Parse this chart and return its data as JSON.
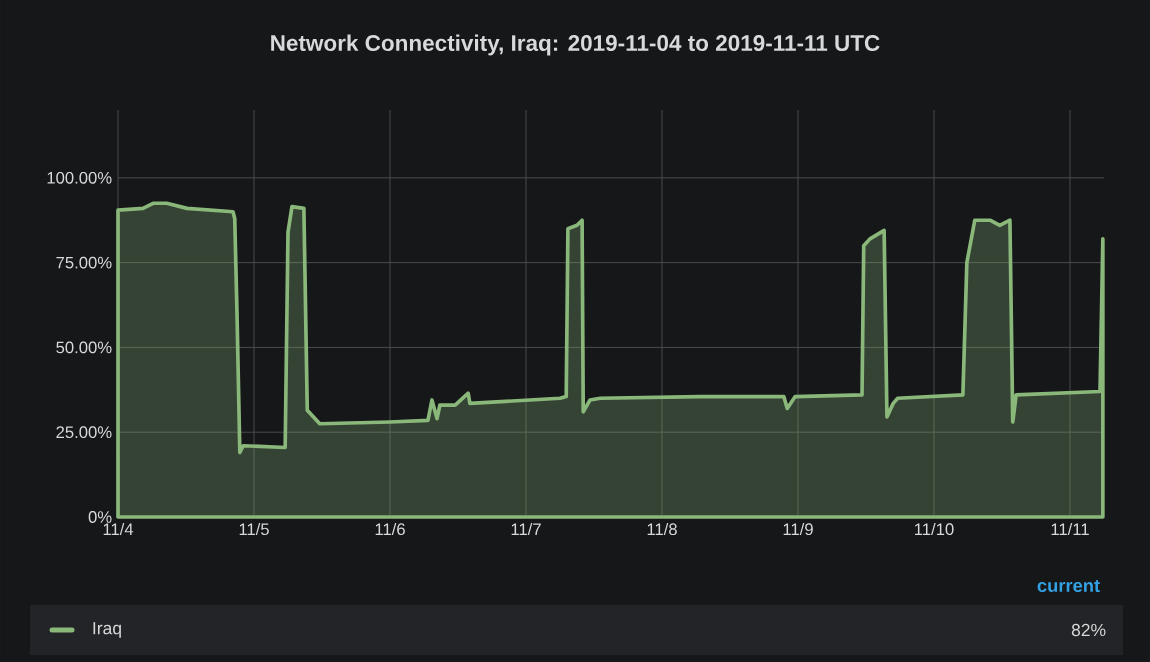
{
  "chart_data": {
    "type": "area",
    "title": "Network Connectivity, Iraq: 2019-11-04 to 2019-11-11 UTC",
    "xlim": [
      "2019-11-04T00:00",
      "2019-11-11T06:00"
    ],
    "xticks": [
      {
        "value": "2019-11-04",
        "label": "11/4"
      },
      {
        "value": "2019-11-05",
        "label": "11/5"
      },
      {
        "value": "2019-11-06",
        "label": "11/6"
      },
      {
        "value": "2019-11-07",
        "label": "11/7"
      },
      {
        "value": "2019-11-08",
        "label": "11/8"
      },
      {
        "value": "2019-11-09",
        "label": "11/9"
      },
      {
        "value": "2019-11-10",
        "label": "11/10"
      },
      {
        "value": "2019-11-11",
        "label": "11/11"
      }
    ],
    "ylim": [
      0,
      120
    ],
    "yticks": [
      {
        "value": 0,
        "label": "0%"
      },
      {
        "value": 25,
        "label": "25.00%"
      },
      {
        "value": 50,
        "label": "50.00%"
      },
      {
        "value": 75,
        "label": "75.00%"
      },
      {
        "value": 100,
        "label": "100.00%"
      }
    ],
    "x": [
      "2019-11-04T00:00",
      "2019-11-04T04:24",
      "2019-11-04T06:12",
      "2019-11-04T08:36",
      "2019-11-04T12:12",
      "2019-11-04T20:18",
      "2019-11-04T20:36",
      "2019-11-04T21:00",
      "2019-11-04T21:30",
      "2019-11-04T22:06",
      "2019-11-05T05:30",
      "2019-11-05T06:00",
      "2019-11-05T06:42",
      "2019-11-05T08:48",
      "2019-11-05T09:24",
      "2019-11-05T11:36",
      "2019-11-06T00:00",
      "2019-11-06T06:42",
      "2019-11-06T07:24",
      "2019-11-06T08:18",
      "2019-11-06T08:48",
      "2019-11-06T11:30",
      "2019-11-06T13:48",
      "2019-11-06T14:06",
      "2019-11-07T06:00",
      "2019-11-07T07:06",
      "2019-11-07T07:24",
      "2019-11-07T09:00",
      "2019-11-07T09:54",
      "2019-11-07T10:06",
      "2019-11-07T11:18",
      "2019-11-07T13:06",
      "2019-11-08T06:42",
      "2019-11-08T21:30",
      "2019-11-08T22:06",
      "2019-11-08T23:30",
      "2019-11-09T11:18",
      "2019-11-09T11:36",
      "2019-11-09T12:42",
      "2019-11-09T15:12",
      "2019-11-09T15:42",
      "2019-11-09T16:48",
      "2019-11-09T17:36",
      "2019-11-10T05:06",
      "2019-11-10T05:48",
      "2019-11-10T07:12",
      "2019-11-10T09:54",
      "2019-11-10T11:36",
      "2019-11-10T13:24",
      "2019-11-10T13:54",
      "2019-11-10T14:30",
      "2019-11-11T05:18",
      "2019-11-11T05:48"
    ],
    "series": [
      {
        "name": "Iraq",
        "color": "#8ab87a",
        "values": [
          90.5,
          91,
          92.5,
          92.5,
          91,
          90,
          88,
          60,
          19,
          21,
          20.5,
          84,
          91.5,
          91,
          31.5,
          27.5,
          28,
          28.5,
          34.5,
          29,
          33,
          33,
          36.5,
          33.5,
          35,
          35.5,
          85,
          86,
          87.5,
          31,
          34.5,
          35,
          35.5,
          35.5,
          32,
          35.5,
          36,
          80,
          82,
          84.5,
          29.5,
          33.5,
          35,
          36,
          75,
          87.5,
          87.5,
          86,
          87.5,
          28,
          36,
          37,
          82
        ]
      }
    ],
    "grid": true,
    "legend": "bottom",
    "legend_title": "current",
    "annotations": [
      "82%"
    ]
  }
}
